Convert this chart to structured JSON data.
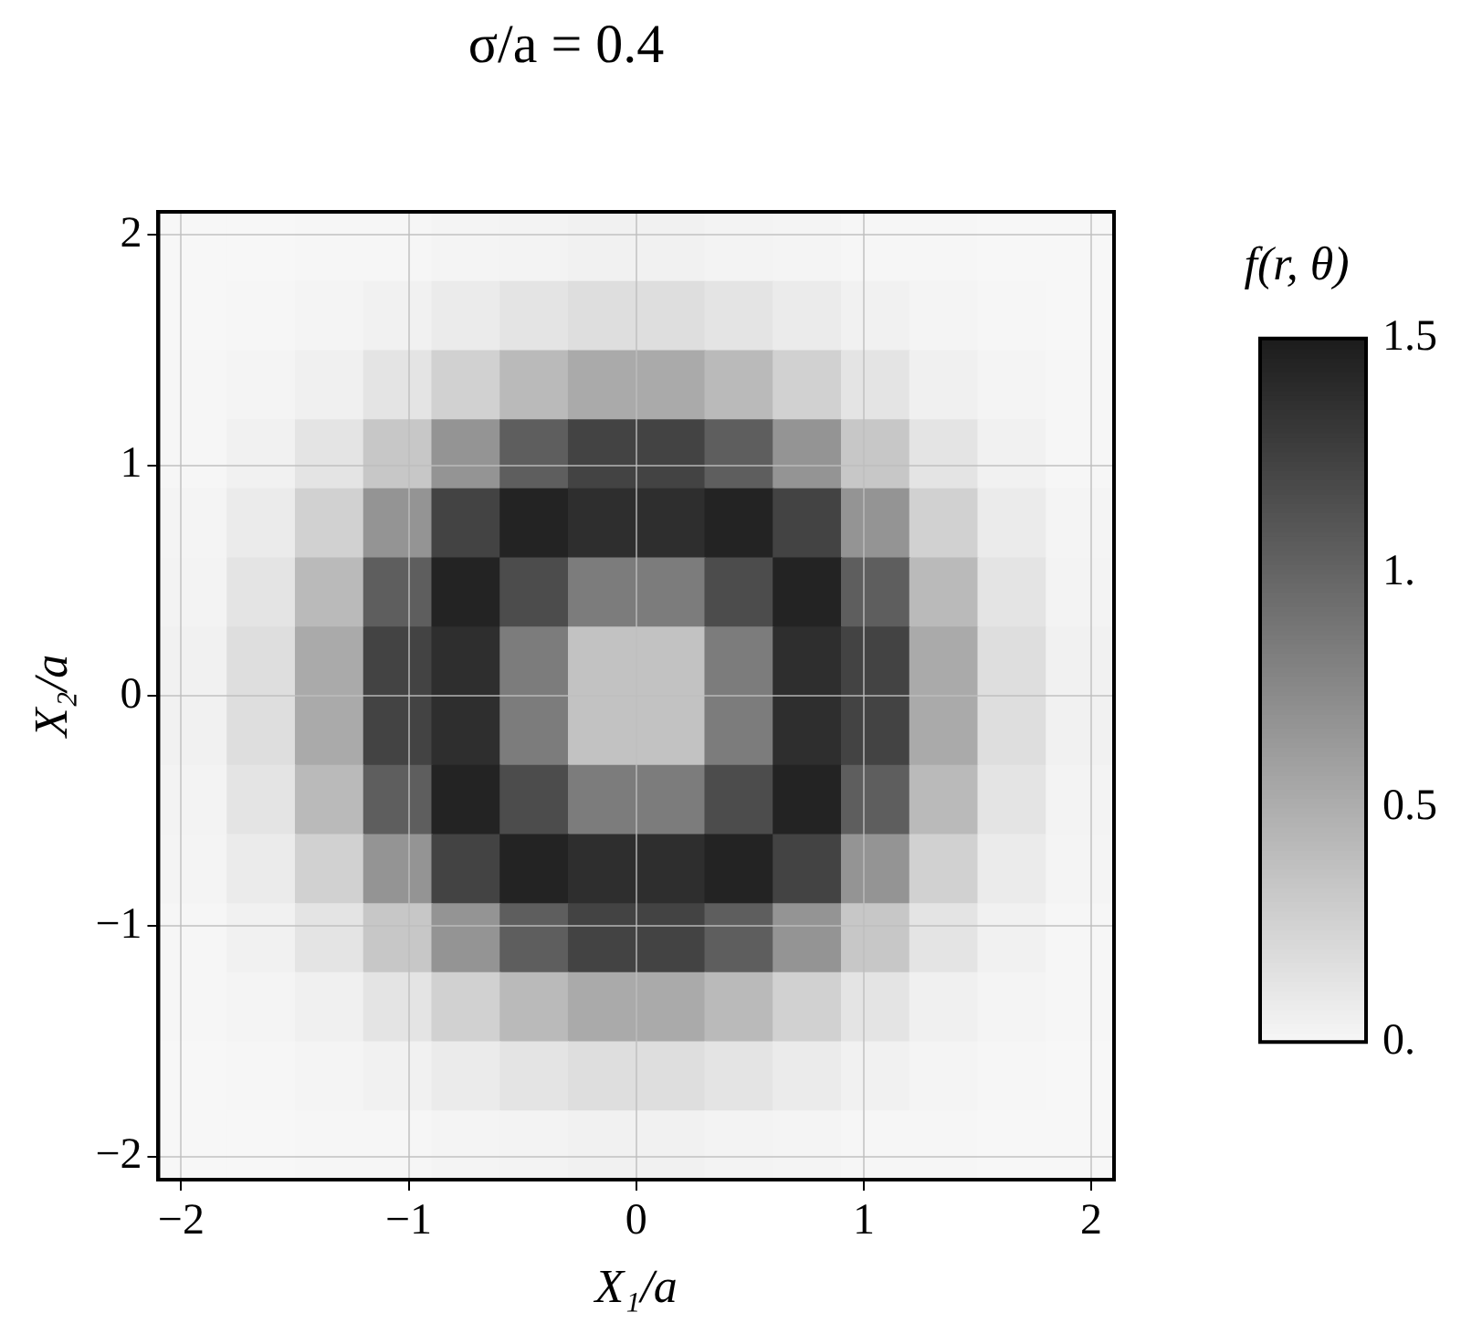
{
  "chart_data": {
    "type": "heatmap",
    "title": "σ/a = 0.4",
    "xlabel": "X₁/a",
    "ylabel": "X₂/a",
    "clabel": "f(r, θ)",
    "xlim": [
      -2.1,
      2.1
    ],
    "ylim": [
      -2.1,
      2.1
    ],
    "xticks": [
      {
        "value": -2,
        "label": "−2"
      },
      {
        "value": -1,
        "label": "−1"
      },
      0,
      1,
      2
    ],
    "yticks": [
      {
        "value": -2,
        "label": "−2"
      },
      {
        "value": -1,
        "label": "−1"
      },
      0,
      1,
      2
    ],
    "clim": [
      0,
      1.5
    ],
    "cticks": [
      {
        "value": 0,
        "label": "0."
      },
      {
        "value": 0.5,
        "label": "0.5"
      },
      {
        "value": 1,
        "label": "1."
      },
      1.5
    ],
    "grid": true,
    "cells": [
      [
        0,
        0,
        0.01,
        0.01,
        0.02,
        0.03,
        0.04,
        0.04,
        0.03,
        0.02,
        0.01,
        0.01,
        0,
        0
      ],
      [
        0,
        0.01,
        0.02,
        0.04,
        0.08,
        0.13,
        0.17,
        0.17,
        0.13,
        0.08,
        0.04,
        0.02,
        0.01,
        0
      ],
      [
        0.01,
        0.02,
        0.05,
        0.13,
        0.26,
        0.42,
        0.53,
        0.53,
        0.42,
        0.26,
        0.13,
        0.05,
        0.02,
        0.01
      ],
      [
        0.01,
        0.04,
        0.13,
        0.33,
        0.68,
        1.05,
        1.23,
        1.23,
        1.05,
        0.68,
        0.33,
        0.13,
        0.04,
        0.01
      ],
      [
        0.02,
        0.08,
        0.26,
        0.68,
        1.23,
        1.45,
        1.38,
        1.38,
        1.45,
        1.23,
        0.68,
        0.26,
        0.08,
        0.02
      ],
      [
        0.03,
        0.13,
        0.42,
        1.05,
        1.45,
        1.17,
        0.84,
        0.84,
        1.17,
        1.45,
        1.05,
        0.42,
        0.13,
        0.03
      ],
      [
        0.04,
        0.17,
        0.53,
        1.23,
        1.38,
        0.84,
        0.36,
        0.36,
        0.84,
        1.38,
        1.23,
        0.53,
        0.17,
        0.04
      ],
      [
        0.04,
        0.17,
        0.53,
        1.23,
        1.38,
        0.84,
        0.36,
        0.36,
        0.84,
        1.38,
        1.23,
        0.53,
        0.17,
        0.04
      ],
      [
        0.03,
        0.13,
        0.42,
        1.05,
        1.45,
        1.17,
        0.84,
        0.84,
        1.17,
        1.45,
        1.05,
        0.42,
        0.13,
        0.03
      ],
      [
        0.02,
        0.08,
        0.26,
        0.68,
        1.23,
        1.45,
        1.38,
        1.38,
        1.45,
        1.23,
        0.68,
        0.26,
        0.08,
        0.02
      ],
      [
        0.01,
        0.04,
        0.13,
        0.33,
        0.68,
        1.05,
        1.23,
        1.23,
        1.05,
        0.68,
        0.33,
        0.13,
        0.04,
        0.01
      ],
      [
        0.01,
        0.02,
        0.05,
        0.13,
        0.26,
        0.42,
        0.53,
        0.53,
        0.42,
        0.26,
        0.13,
        0.05,
        0.02,
        0.01
      ],
      [
        0,
        0.01,
        0.02,
        0.04,
        0.08,
        0.13,
        0.17,
        0.17,
        0.13,
        0.08,
        0.04,
        0.02,
        0.01,
        0
      ],
      [
        0,
        0,
        0.01,
        0.01,
        0.02,
        0.03,
        0.04,
        0.04,
        0.03,
        0.02,
        0.01,
        0.01,
        0,
        0
      ]
    ]
  }
}
